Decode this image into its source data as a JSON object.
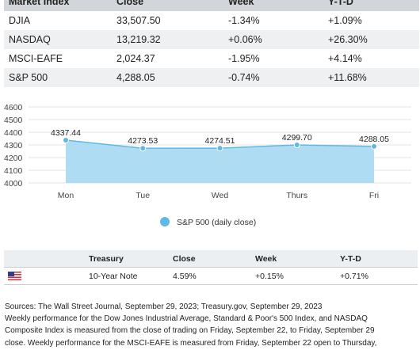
{
  "market_table": {
    "headers": [
      "Market Index",
      "Close",
      "Week",
      "Y-T-D"
    ],
    "rows": [
      {
        "index": "DJIA",
        "close": "33,507.50",
        "week": "-1.34%",
        "ytd": "+1.09%"
      },
      {
        "index": "NASDAQ",
        "close": "13,219.32",
        "week": "+0.06%",
        "ytd": "+26.30%"
      },
      {
        "index": "MSCI-EAFE",
        "close": "2,024.37",
        "week": "-1.95%",
        "ytd": "+4.14%"
      },
      {
        "index": "S&P 500",
        "close": "4,288.05",
        "week": "-0.74%",
        "ytd": "+11.68%"
      }
    ]
  },
  "chart_data": {
    "type": "area",
    "x": [
      "Mon",
      "Tue",
      "Wed",
      "Thurs",
      "Fri"
    ],
    "series": [
      {
        "name": "S&P 500 (daily close)",
        "values": [
          4337.44,
          4273.53,
          4274.51,
          4299.7,
          4288.05
        ],
        "labels": [
          "4337.44",
          "4273.53",
          "4274.51",
          "4299.70",
          "4288.05"
        ]
      }
    ],
    "yticks": [
      4000,
      4100,
      4200,
      4300,
      4400,
      4500,
      4600
    ],
    "ylim": [
      4000,
      4600
    ],
    "grid": true,
    "legend_position": "bottom",
    "colors": {
      "fill": "#aedcf2",
      "line": "#5fb8e6",
      "marker": "#5fb8e6"
    }
  },
  "treasury_table": {
    "headers": [
      "",
      "Treasury",
      "Close",
      "Week",
      "Y-T-D"
    ],
    "row": {
      "flag_icon": "us-flag-icon",
      "name": "10-Year Note",
      "close": "4.59%",
      "week": "+0.15%",
      "ytd": "+0.71%"
    }
  },
  "sources": {
    "lines": [
      "Sources: The Wall Street Journal, September 29, 2023; Treasury.gov, September 29, 2023",
      "Weekly performance for the Dow Jones Industrial Average, Standard & Poor's 500 Index, and NASDAQ",
      "Composite Index is measured from the close of trading on Friday, September 22, to Friday, September 29",
      "close. Weekly performance for the MSCI-EAFE is measured from Friday, September 22 open to Thursday,"
    ]
  }
}
